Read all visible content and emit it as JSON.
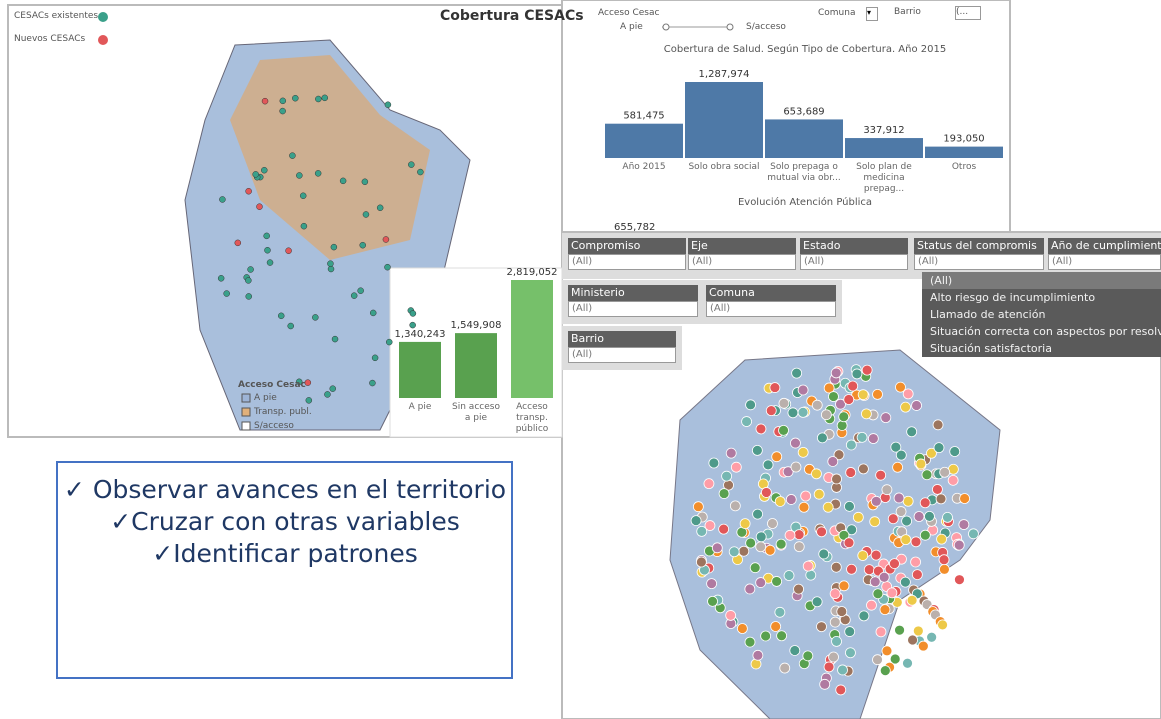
{
  "map_panel": {
    "title": "Cobertura CESACs",
    "legend": [
      "CESACs existentes",
      "Nuevos CESACs"
    ],
    "access_legend": {
      "title": "Acceso Cesac",
      "items": [
        "A pie",
        "Transp. publ.",
        "S/acceso"
      ]
    }
  },
  "coverage_panel": {
    "access_label": "Acceso Cesac",
    "slider_left": "A pie",
    "slider_right": "S/acceso",
    "comuna": "Comuna",
    "barrio": "Barrio",
    "barrio_value": "(...",
    "second_title": "Evolución Atención Pública",
    "second_value": "655,782"
  },
  "chart_data": [
    {
      "type": "bar",
      "title": "Cobertura de Salud. Según Tipo de Cobertura. Año 2015",
      "categories": [
        "Año 2015",
        "Solo obra social",
        "Solo prepaga o mutual via obr...",
        "Solo plan de medicina prepag...",
        "Otros"
      ],
      "values": [
        581475,
        1287974,
        653689,
        337912,
        193050
      ],
      "value_labels": [
        "581,475",
        "1,287,974",
        "653,689",
        "337,912",
        "193,050"
      ],
      "color": "#4e79a7"
    },
    {
      "type": "bar",
      "categories": [
        "A pie",
        "Sin acceso a pie",
        "Acceso transp. público"
      ],
      "values": [
        1340243,
        1549908,
        2819052
      ],
      "value_labels": [
        "1,340,243",
        "1,549,908",
        "2,819,052"
      ],
      "colors": [
        "#59a14f",
        "#59a14f",
        "#76c06a"
      ]
    }
  ],
  "filters_panel": {
    "filters": [
      {
        "label": "Compromiso",
        "value": "(All)"
      },
      {
        "label": "Eje",
        "value": "(All)"
      },
      {
        "label": "Estado",
        "value": "(All)"
      },
      {
        "label": "Status del compromis",
        "value": "(All)"
      },
      {
        "label": "Año de cumplimiento",
        "value": "(All)"
      },
      {
        "label": "Ministerio",
        "value": "(All)"
      },
      {
        "label": "Comuna",
        "value": "(All)"
      },
      {
        "label": "Barrio",
        "value": "(All)"
      }
    ],
    "dropdown": [
      "(All)",
      "Alto riesgo de incumplimiento",
      "Llamado de atención",
      "Situación correcta con aspectos por resolver",
      "Situación satisfactoria"
    ]
  },
  "text_box": [
    "✓ Observar avances en el territorio",
    "✓Cruzar con otras variables",
    "✓Identificar patrones"
  ]
}
